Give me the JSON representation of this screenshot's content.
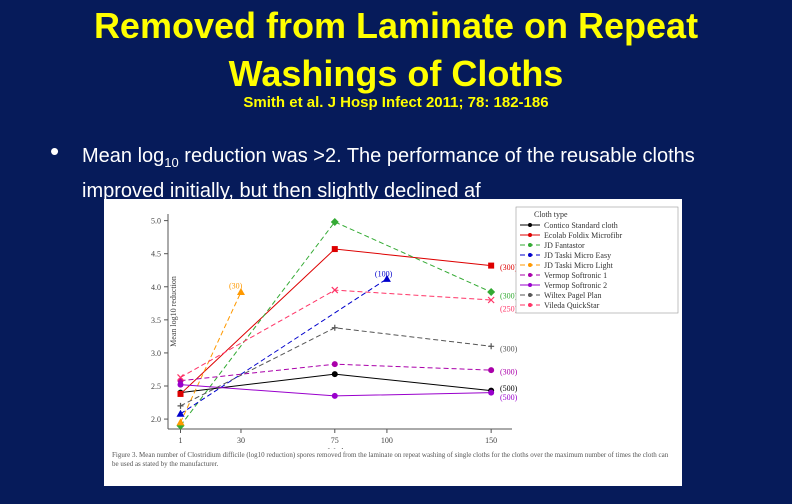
{
  "slide": {
    "title_line1": "Removed from Laminate on Repeat",
    "title_line2": "Washings of Cloths",
    "citation": "Smith et al. J Hosp Infect 2011; 78: 182-186",
    "bullet_sub": "10",
    "bullet_before": "Mean log",
    "bullet_after": " reduction was >2. The performance of the reusable cloths improved initially, but then slightly declined af",
    "colors": {
      "background": "#061b5a",
      "title": "#ffff00",
      "text": "#ffffff"
    }
  },
  "chart_data": {
    "type": "line",
    "xlabel": "Washes",
    "ylabel": "Mean log10 reduction",
    "x": [
      1,
      30,
      75,
      100,
      150
    ],
    "ylim": [
      1.85,
      5.1
    ],
    "yticks": [
      "2.0",
      "2.5",
      "3.0",
      "3.5",
      "4.0",
      "4.5",
      "5.0"
    ],
    "xticks": [
      "1",
      "30",
      "75",
      "100",
      "150"
    ],
    "legend_title": "Cloth type",
    "legend_position": "top-right",
    "series": [
      {
        "name": "Contico Standard cloth",
        "color": "#000000",
        "dash": "",
        "x": [
          1,
          75,
          150
        ],
        "values": [
          2.4,
          2.68,
          2.43
        ]
      },
      {
        "name": "Ecolab Foldix Microfibr",
        "color": "#dd0000",
        "dash": "",
        "x": [
          1,
          75,
          150
        ],
        "values": [
          2.38,
          4.57,
          4.32
        ]
      },
      {
        "name": "JD Fantastor",
        "color": "#33aa33",
        "dash": "5,3",
        "x": [
          1,
          75,
          150
        ],
        "values": [
          1.9,
          4.98,
          3.92
        ]
      },
      {
        "name": "JD Taski Micro Easy",
        "color": "#0000cc",
        "dash": "5,3",
        "x": [
          1,
          100
        ],
        "values": [
          2.08,
          4.12
        ]
      },
      {
        "name": "JD Taski Micro Light",
        "color": "#ff9900",
        "dash": "5,3",
        "x": [
          1,
          30
        ],
        "values": [
          1.95,
          3.92
        ]
      },
      {
        "name": "Vermop Softronic 1",
        "color": "#aa00aa",
        "dash": "5,3",
        "x": [
          1,
          75,
          150
        ],
        "values": [
          2.58,
          2.83,
          2.74
        ]
      },
      {
        "name": "Vermop Softronic 2",
        "color": "#9900cc",
        "dash": "",
        "x": [
          1,
          75,
          150
        ],
        "values": [
          2.52,
          2.35,
          2.4
        ]
      },
      {
        "name": "Wiltex Pagel Plan",
        "color": "#555555",
        "dash": "5,3",
        "x": [
          1,
          75,
          150
        ],
        "values": [
          2.2,
          3.38,
          3.1
        ]
      },
      {
        "name": "Vileda QuickStar",
        "color": "#ff3366",
        "dash": "5,3",
        "x": [
          1,
          75,
          150
        ],
        "values": [
          2.63,
          3.95,
          3.8
        ]
      }
    ],
    "annotations": [
      {
        "text": "(30)",
        "x": 30,
        "y": 4.02,
        "color": "#ff9900"
      },
      {
        "text": "(100)",
        "x": 100,
        "y": 4.2,
        "color": "#0000cc"
      },
      {
        "text": "(300)",
        "x": 160,
        "y": 4.3,
        "color": "#dd0000"
      },
      {
        "text": "(300)",
        "x": 160,
        "y": 3.87,
        "color": "#33aa33"
      },
      {
        "text": "(250)",
        "x": 160,
        "y": 3.67,
        "color": "#ff3366"
      },
      {
        "text": "(300)",
        "x": 160,
        "y": 3.07,
        "color": "#555555"
      },
      {
        "text": "(300)",
        "x": 160,
        "y": 2.72,
        "color": "#aa00aa"
      },
      {
        "text": "(500)",
        "x": 160,
        "y": 2.47,
        "color": "#000000"
      },
      {
        "text": "(500)",
        "x": 160,
        "y": 2.33,
        "color": "#9900cc"
      }
    ],
    "caption": "Figure 3. Mean number of Clostridium difficile (log10 reduction) spores removed from the laminate on repeat washing of single cloths for the cloths over the maximum number of times the cloth can be used as stated by the manufacturer."
  }
}
